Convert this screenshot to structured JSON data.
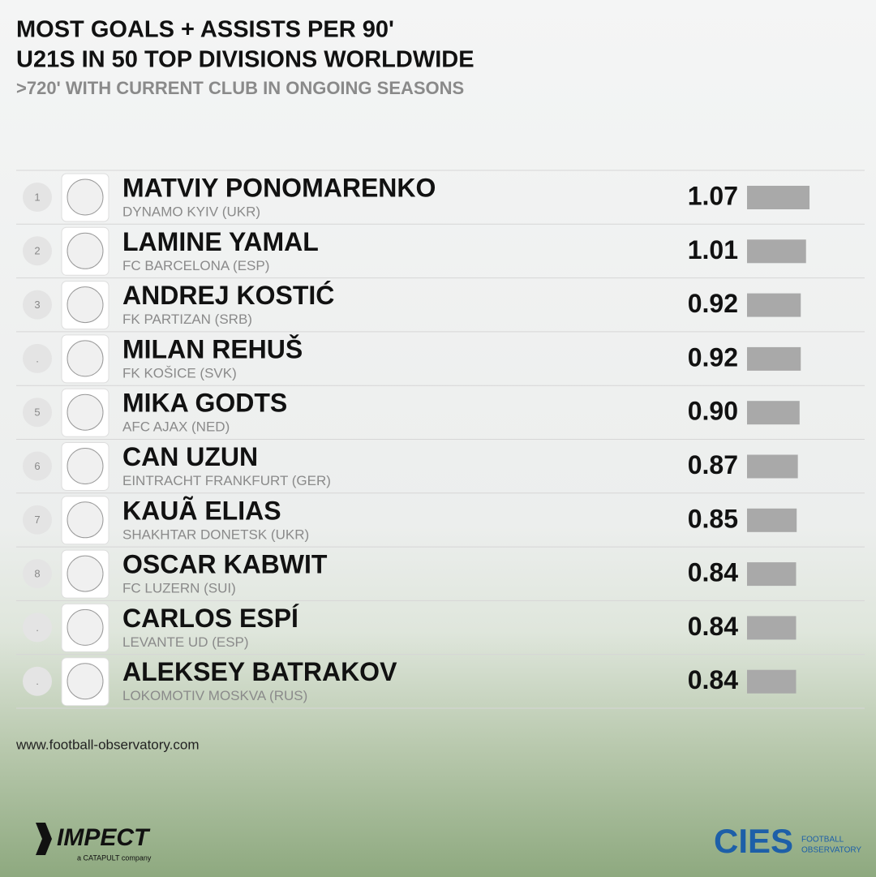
{
  "chart_data": {
    "type": "bar",
    "title": "MOST GOALS + ASSISTS PER 90'",
    "subtitle": "U21S IN 50 TOP DIVISIONS WORLDWIDE",
    "note": ">720' WITH CURRENT CLUB IN ONGOING SEASONS",
    "ranks": [
      "1",
      "2",
      "3",
      ".",
      "5",
      "6",
      "7",
      "8",
      ".",
      "."
    ],
    "categories": [
      "MATVIY PONOMARENKO",
      "LAMINE YAMAL",
      "ANDREJ KOSTIĆ",
      "MILAN REHUŠ",
      "MIKA GODTS",
      "CAN UZUN",
      "KAUÃ ELIAS",
      "OSCAR KABWIT",
      "CARLOS ESPÍ",
      "ALEKSEY BATRAKOV"
    ],
    "clubs": [
      "DYNAMO KYIV (UKR)",
      "FC BARCELONA (ESP)",
      "FK PARTIZAN (SRB)",
      "FK KOŠICE (SVK)",
      "AFC AJAX (NED)",
      "EINTRACHT FRANKFURT (GER)",
      "SHAKHTAR DONETSK (UKR)",
      "FC LUZERN (SUI)",
      "LEVANTE UD (ESP)",
      "LOKOMOTIV MOSKVA (RUS)"
    ],
    "values": [
      1.07,
      1.01,
      0.92,
      0.92,
      0.9,
      0.87,
      0.85,
      0.84,
      0.84,
      0.84
    ],
    "value_labels": [
      "1.07",
      "1.01",
      "0.92",
      "0.92",
      "0.90",
      "0.87",
      "0.85",
      "0.84",
      "0.84",
      "0.84"
    ],
    "color": "#a9a9a9"
  },
  "footer": {
    "url": "www.football-observatory.com",
    "brand": "IMPECT",
    "brand_note": "a CATAPULT company",
    "partner": "CIES",
    "partner_note_1": "FOOTBALL",
    "partner_note_2": "OBSERVATORY"
  }
}
